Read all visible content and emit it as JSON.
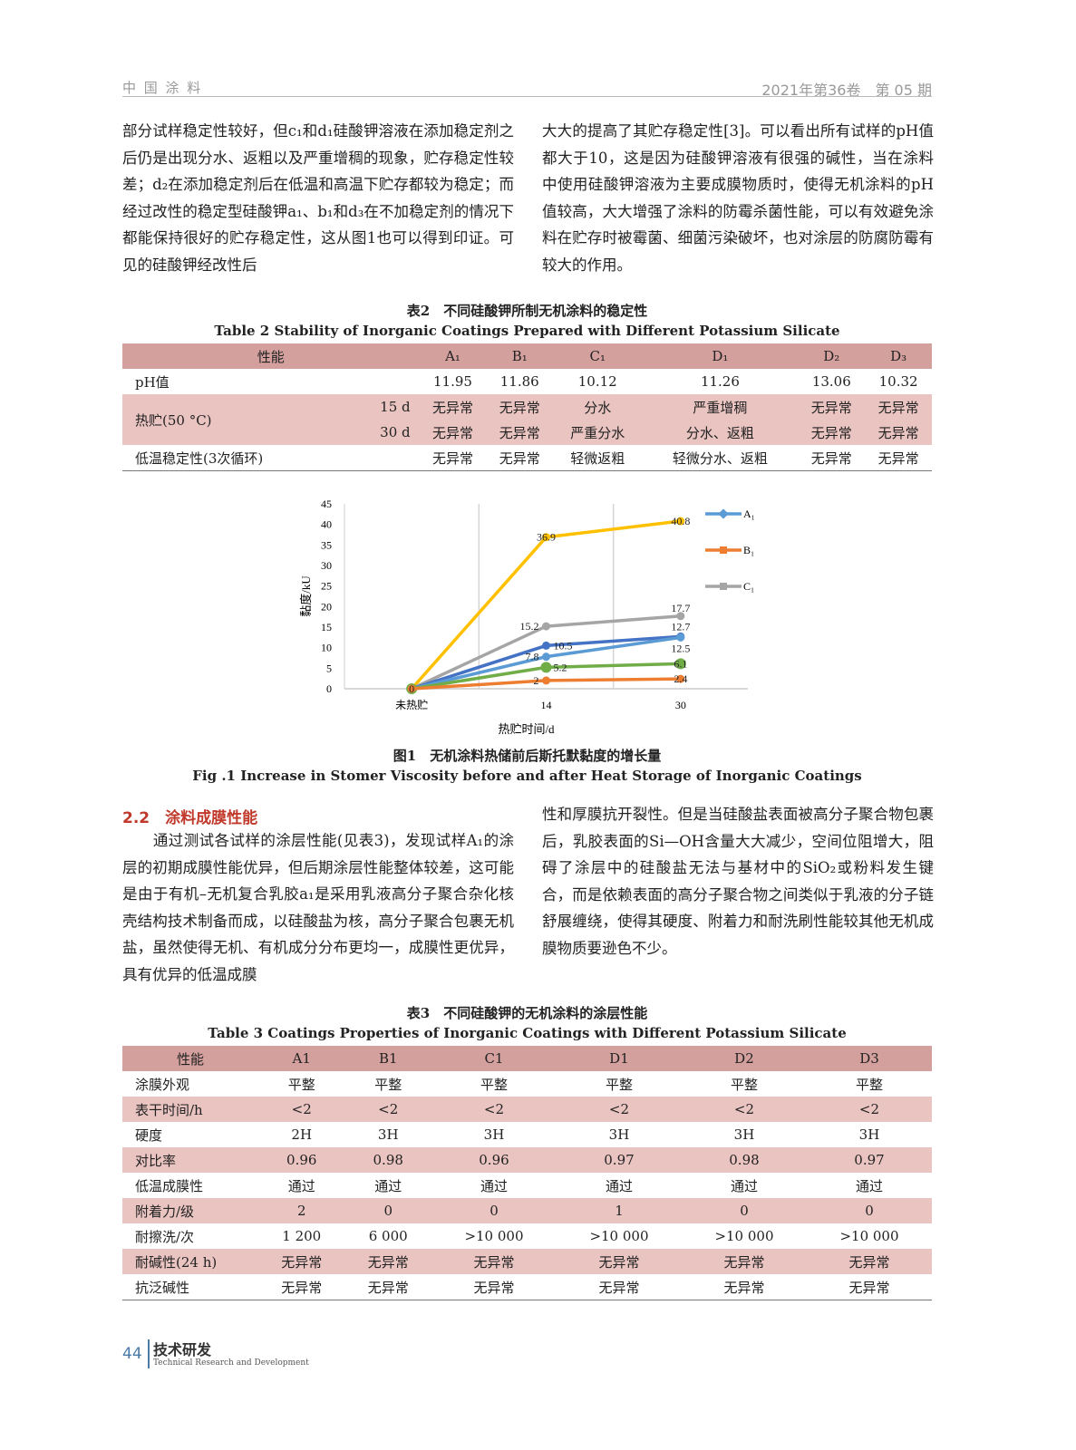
{
  "header": {
    "journal": "中 国 涂 料",
    "issue": "2021年第36卷　第 05 期"
  },
  "left_col_1": "部分试样稳定性较好，但c₁和d₁硅酸钾溶液在添加稳定剂之后仍是出现分水、返粗以及严重增稠的现象，贮存稳定性较差；d₂在添加稳定剂后在低温和高温下贮存都较为稳定；而经过改性的稳定型硅酸钾a₁、b₁和d₃在不加稳定剂的情况下都能保持很好的贮存稳定性，这从图1也可以得到印证。可见的硅酸钾经改性后",
  "right_col_1": "大大的提高了其贮存稳定性[3]。可以看出所有试样的pH值都大于10，这是因为硅酸钾溶液有很强的碱性，当在涂料中使用硅酸钾溶液为主要成膜物质时，使得无机涂料的pH值较高，大大增强了涂料的防霉杀菌性能，可以有效避免涂料在贮存时被霉菌、细菌污染破坏，也对涂层的防腐防霉有较大的作用。",
  "table2": {
    "title_cn": "表2　不同硅酸钾所制无机涂料的稳定性",
    "title_en": "Table 2   Stability of Inorganic Coatings Prepared with Different Potassium Silicate",
    "headers": [
      "性能",
      "A₁",
      "B₁",
      "C₁",
      "D₁",
      "D₂",
      "D₃"
    ],
    "ph": {
      "label": "pH值",
      "values": [
        "11.95",
        "11.86",
        "10.12",
        "11.26",
        "13.06",
        "10.32"
      ]
    },
    "heat": {
      "label": "热贮(50 °C)",
      "sub": [
        "15 d",
        "30 d"
      ],
      "rows": [
        [
          "无异常",
          "无异常",
          "分水",
          "严重增稠",
          "无异常",
          "无异常"
        ],
        [
          "无异常",
          "无异常",
          "严重分水",
          "分水、返粗",
          "无异常",
          "无异常"
        ]
      ]
    },
    "low": {
      "label": "低温稳定性(3次循环)",
      "values": [
        "无异常",
        "无异常",
        "轻微返粗",
        "轻微分水、返粗",
        "无异常",
        "无异常"
      ]
    }
  },
  "chart_data": {
    "type": "line",
    "categories": [
      "未热贮",
      "14",
      "30"
    ],
    "xlabel": "热贮时间/d",
    "ylabel": "黏度/kU",
    "ylim": [
      0,
      45
    ],
    "yticks": [
      0,
      5,
      10,
      15,
      20,
      25,
      30,
      35,
      40,
      45
    ],
    "grid": "vertical",
    "legend_placement": "right",
    "series": [
      {
        "name": "A₁",
        "color": "#5b9bd5",
        "values": [
          0,
          7.8,
          12.5
        ],
        "labels": [
          "",
          "7.8",
          "12.5"
        ]
      },
      {
        "name": "B₁",
        "color": "#ed7d31",
        "values": [
          0,
          2,
          2.4
        ],
        "labels": [
          "",
          "2",
          "2.4"
        ]
      },
      {
        "name": "C₁",
        "color": "#a5a5a5",
        "values": [
          0,
          15.2,
          17.7
        ],
        "labels": [
          "",
          "15.2",
          "17.7"
        ]
      },
      {
        "color": "#ffc000",
        "values": [
          0,
          36.9,
          40.8
        ],
        "labels": [
          "",
          "36.9",
          "40.8"
        ]
      },
      {
        "color": "#4472c4",
        "values": [
          0,
          10.5,
          12.7
        ],
        "labels": [
          "",
          "10.5",
          "12.7"
        ]
      },
      {
        "color": "#70ad47",
        "values": [
          0,
          5.2,
          6.1
        ],
        "labels": [
          "0",
          "5.2",
          "6.1"
        ]
      }
    ]
  },
  "fig1": {
    "title_cn": "图1　无机涂料热储前后斯托默黏度的增长量",
    "title_en": "Fig .1   Increase in Stomer Viscosity before and after Heat Storage of Inorganic Coatings"
  },
  "section": {
    "title": "2.2　涂料成膜性能"
  },
  "left_col_2": "　　通过测试各试样的涂层性能(见表3)，发现试样A₁的涂层的初期成膜性能优异，但后期涂层性能整体较差，这可能是由于有机–无机复合乳胶a₁是采用乳液高分子聚合杂化核壳结构技术制备而成，以硅酸盐为核，高分子聚合包裹无机盐，虽然使得无机、有机成分分布更均一，成膜性更优异，具有优异的低温成膜",
  "right_col_2": "性和厚膜抗开裂性。但是当硅酸盐表面被高分子聚合物包裹后，乳胶表面的Si—OH含量大大减少，空间位阻增大，阻碍了涂层中的硅酸盐无法与基材中的SiO₂或粉料发生键合，而是依赖表面的高分子聚合物之间类似于乳液的分子链舒展缠绕，使得其硬度、附着力和耐洗刷性能较其他无机成膜物质要逊色不少。",
  "table3": {
    "title_cn": "表3　不同硅酸钾的无机涂料的涂层性能",
    "title_en": "Table 3   Coatings Properties of Inorganic Coatings with Different Potassium Silicate",
    "headers": [
      "性能",
      "A1",
      "B1",
      "C1",
      "D1",
      "D2",
      "D3"
    ],
    "rows": [
      [
        "涂膜外观",
        "平整",
        "平整",
        "平整",
        "平整",
        "平整",
        "平整"
      ],
      [
        "表干时间/h",
        "<2",
        "<2",
        "<2",
        "<2",
        "<2",
        "<2"
      ],
      [
        "硬度",
        "2H",
        "3H",
        "3H",
        "3H",
        "3H",
        "3H"
      ],
      [
        "对比率",
        "0.96",
        "0.98",
        "0.96",
        "0.97",
        "0.98",
        "0.97"
      ],
      [
        "低温成膜性",
        "通过",
        "通过",
        "通过",
        "通过",
        "通过",
        "通过"
      ],
      [
        "附着力/级",
        "2",
        "0",
        "0",
        "1",
        "0",
        "0"
      ],
      [
        "耐擦洗/次",
        "1 200",
        "6 000",
        ">10 000",
        ">10 000",
        ">10 000",
        ">10 000"
      ],
      [
        "耐碱性(24 h)",
        "无异常",
        "无异常",
        "无异常",
        "无异常",
        "无异常",
        "无异常"
      ],
      [
        "抗泛碱性",
        "无异常",
        "无异常",
        "无异常",
        "无异常",
        "无异常",
        "无异常"
      ]
    ]
  },
  "footer": {
    "page": "44",
    "section_cn": "技术研发",
    "section_en": "Technical Research and Development"
  }
}
